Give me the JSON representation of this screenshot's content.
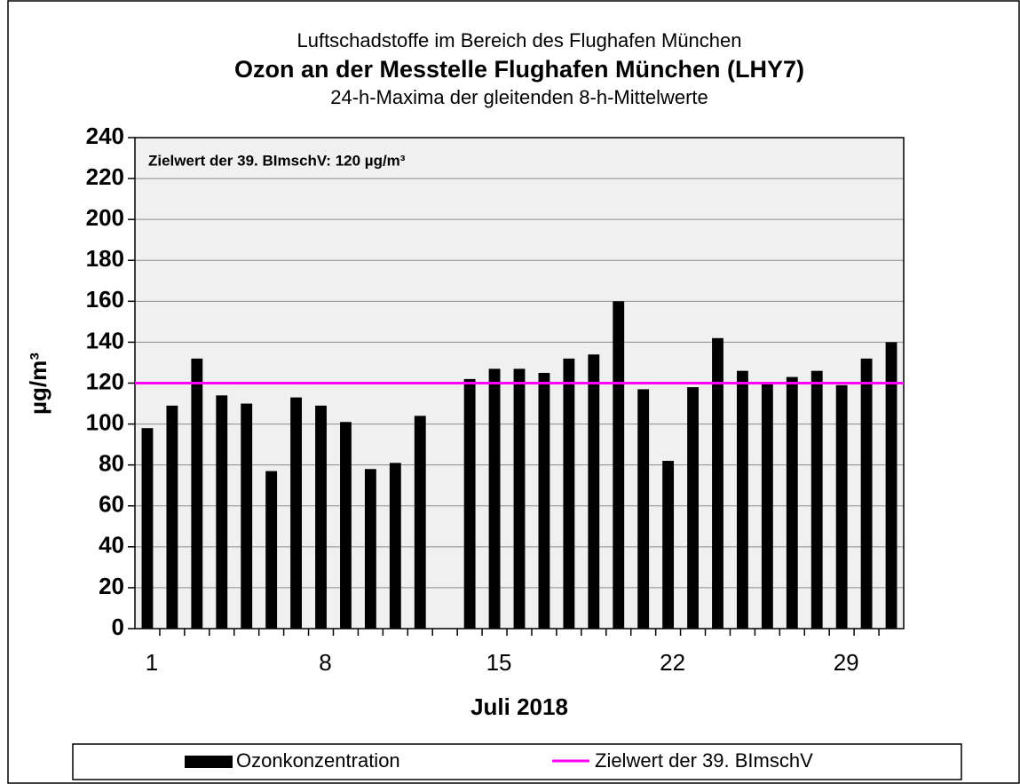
{
  "chart_data": {
    "type": "bar",
    "title": "Ozon an der Messtelle Flughafen München (LHY7)",
    "supertitle": "Luftschadstoffe im Bereich des Flughafen München",
    "subtitle": "24-h-Maxima der gleitenden 8-h-Mittelwerte",
    "x_label": "Juli 2018",
    "y_label": "µg/m³",
    "annotation": "Zielwert der 39. BImschV: 120 µg/m³",
    "x": [
      1,
      2,
      3,
      4,
      5,
      6,
      7,
      8,
      9,
      10,
      11,
      12,
      13,
      14,
      15,
      16,
      17,
      18,
      19,
      20,
      21,
      22,
      23,
      24,
      25,
      26,
      27,
      28,
      29,
      30,
      31
    ],
    "series": [
      {
        "name": "Ozonkonzentration",
        "color": "#000000",
        "values": [
          98,
          109,
          132,
          114,
          110,
          77,
          113,
          109,
          101,
          78,
          81,
          104,
          null,
          122,
          127,
          127,
          125,
          132,
          134,
          160,
          117,
          82,
          118,
          142,
          126,
          120,
          123,
          126,
          119,
          132,
          140
        ]
      }
    ],
    "reference_line": {
      "name": "Zielwert der 39. BImschV",
      "value": 120,
      "color": "#ff00ff"
    },
    "xlim": [
      0.5,
      31.5
    ],
    "xticks": [
      1,
      8,
      15,
      22,
      29
    ],
    "ylim": [
      0,
      240
    ],
    "yticks": [
      0,
      20,
      40,
      60,
      80,
      100,
      120,
      140,
      160,
      180,
      200,
      220,
      240
    ],
    "grid": true,
    "legend": "bottom"
  }
}
